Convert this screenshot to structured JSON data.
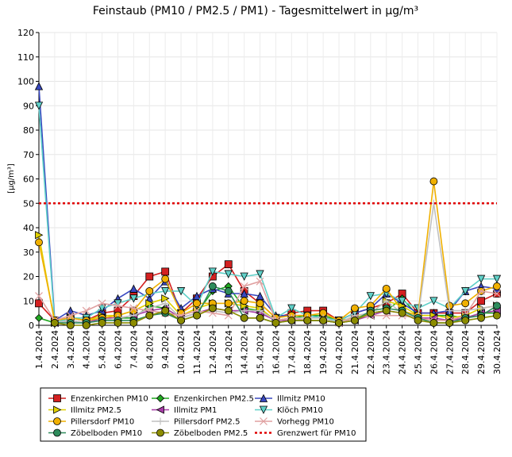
{
  "chart_data": {
    "type": "line",
    "title": "Feinstaub (PM10 / PM2.5 / PM1) -  Tagesmittelwert in µg/m³",
    "ylabel": "[µg/m³]",
    "xlabel": "",
    "ylim": [
      0,
      120
    ],
    "yticks": [
      0,
      10,
      20,
      30,
      40,
      50,
      60,
      70,
      80,
      90,
      100,
      110,
      120
    ],
    "grid": true,
    "legend_position": "bottom",
    "categories": [
      "1.4.2024",
      "2.4.2024",
      "3.4.2024",
      "4.4.2024",
      "5.4.2024",
      "6.4.2024",
      "7.4.2024",
      "8.4.2024",
      "9.4.2024",
      "10.4.2024",
      "11.4.2024",
      "12.4.2024",
      "13.4.2024",
      "14.4.2024",
      "15.4.2024",
      "16.4.2024",
      "17.4.2024",
      "18.4.2024",
      "19.4.2024",
      "20.4.2024",
      "21.4.2024",
      "22.4.2024",
      "23.4.2024",
      "24.4.2024",
      "25.4.2024",
      "26.4.2024",
      "27.4.2024",
      "28.4.2024",
      "29.4.2024",
      "30.4.2024"
    ],
    "series": [
      {
        "name": "Enzenkirchen PM10",
        "color": "#d42020",
        "marker": "square",
        "values": [
          9,
          2,
          3,
          2,
          5,
          6,
          12,
          20,
          22,
          5,
          11,
          20,
          25,
          14,
          9,
          3,
          5,
          6,
          6,
          2,
          5,
          7,
          9,
          13,
          5,
          5,
          5,
          5,
          10,
          13
        ]
      },
      {
        "name": "Enzenkirchen PM2.5",
        "color": "#21a821",
        "marker": "diamond",
        "values": [
          3,
          1,
          2,
          1,
          3,
          3,
          3,
          8,
          7,
          3,
          5,
          14,
          16,
          7,
          6,
          2,
          3,
          4,
          4,
          2,
          3,
          5,
          6,
          11,
          4,
          4,
          4,
          3,
          5,
          5
        ]
      },
      {
        "name": "Illmitz PM10",
        "color": "#3848c0",
        "marker": "triangle-up",
        "values": [
          98,
          2,
          6,
          4,
          6,
          11,
          15,
          11,
          18,
          7,
          12,
          15,
          13,
          13,
          12,
          4,
          4,
          4,
          3,
          2,
          5,
          7,
          13,
          9,
          5,
          5,
          6,
          14,
          16,
          15
        ]
      },
      {
        "name": "Illmitz PM2.5",
        "color": "#e0d000",
        "marker": "triangle-right",
        "values": [
          37,
          1,
          3,
          2,
          4,
          4,
          6,
          9,
          11,
          4,
          7,
          9,
          9,
          8,
          7,
          2,
          3,
          3,
          3,
          2,
          3,
          5,
          10,
          8,
          4,
          4,
          3,
          4,
          7,
          8
        ]
      },
      {
        "name": "Illmitz PM1",
        "color": "#a83ca8",
        "marker": "triangle-left",
        "values": [
          null,
          1,
          2,
          1,
          3,
          3,
          4,
          6,
          7,
          3,
          5,
          7,
          6,
          6,
          5,
          2,
          2,
          2,
          2,
          1,
          2,
          4,
          6,
          5,
          3,
          3,
          2,
          3,
          5,
          6
        ]
      },
      {
        "name": "Klöch PM10",
        "color": "#60d0c8",
        "marker": "triangle-down",
        "values": [
          90,
          1,
          3,
          3,
          7,
          9,
          11,
          13,
          14,
          14,
          8,
          22,
          21,
          20,
          21,
          3,
          7,
          4,
          3,
          2,
          5,
          12,
          13,
          10,
          7,
          10,
          7,
          14,
          19,
          19
        ]
      },
      {
        "name": "Pillersdorf PM10",
        "color": "#f0b000",
        "marker": "circle",
        "values": [
          34,
          2,
          3,
          2,
          3,
          4,
          6,
          14,
          19,
          5,
          9,
          9,
          9,
          10,
          9,
          3,
          4,
          4,
          5,
          2,
          7,
          8,
          15,
          6,
          4,
          59,
          8,
          9,
          14,
          16
        ]
      },
      {
        "name": "Pillersdorf PM2.5",
        "color": "#c0c0c0",
        "marker": "plus",
        "values": [
          null,
          1,
          2,
          1,
          2,
          3,
          4,
          7,
          9,
          3,
          5,
          6,
          5,
          6,
          6,
          2,
          3,
          3,
          3,
          1,
          4,
          5,
          10,
          5,
          3,
          50,
          6,
          6,
          7,
          8
        ]
      },
      {
        "name": "Vorhegg PM10",
        "color": "#e0a0a0",
        "marker": "x",
        "values": [
          12,
          2,
          4,
          6,
          9,
          8,
          7,
          6,
          5,
          4,
          6,
          5,
          4,
          16,
          18,
          2,
          3,
          2,
          2,
          1,
          3,
          4,
          4,
          4,
          3,
          2,
          2,
          4,
          14,
          13
        ]
      },
      {
        "name": "Zöbelboden PM10",
        "color": "#2e8c5c",
        "marker": "circle",
        "values": [
          null,
          1,
          1,
          1,
          2,
          2,
          2,
          4,
          5,
          2,
          4,
          16,
          14,
          3,
          3,
          1,
          2,
          2,
          2,
          1,
          2,
          6,
          7,
          6,
          3,
          1,
          1,
          3,
          4,
          8
        ]
      },
      {
        "name": "Zöbelboden PM2.5",
        "color": "#8c8c00",
        "marker": "circle",
        "values": [
          null,
          1,
          0,
          0,
          1,
          1,
          1,
          4,
          6,
          2,
          4,
          7,
          6,
          3,
          3,
          1,
          2,
          2,
          2,
          1,
          2,
          5,
          6,
          5,
          2,
          1,
          1,
          2,
          3,
          4
        ]
      }
    ],
    "threshold": {
      "name": "Grenzwert für PM10",
      "value": 50,
      "color": "#e00000"
    }
  }
}
